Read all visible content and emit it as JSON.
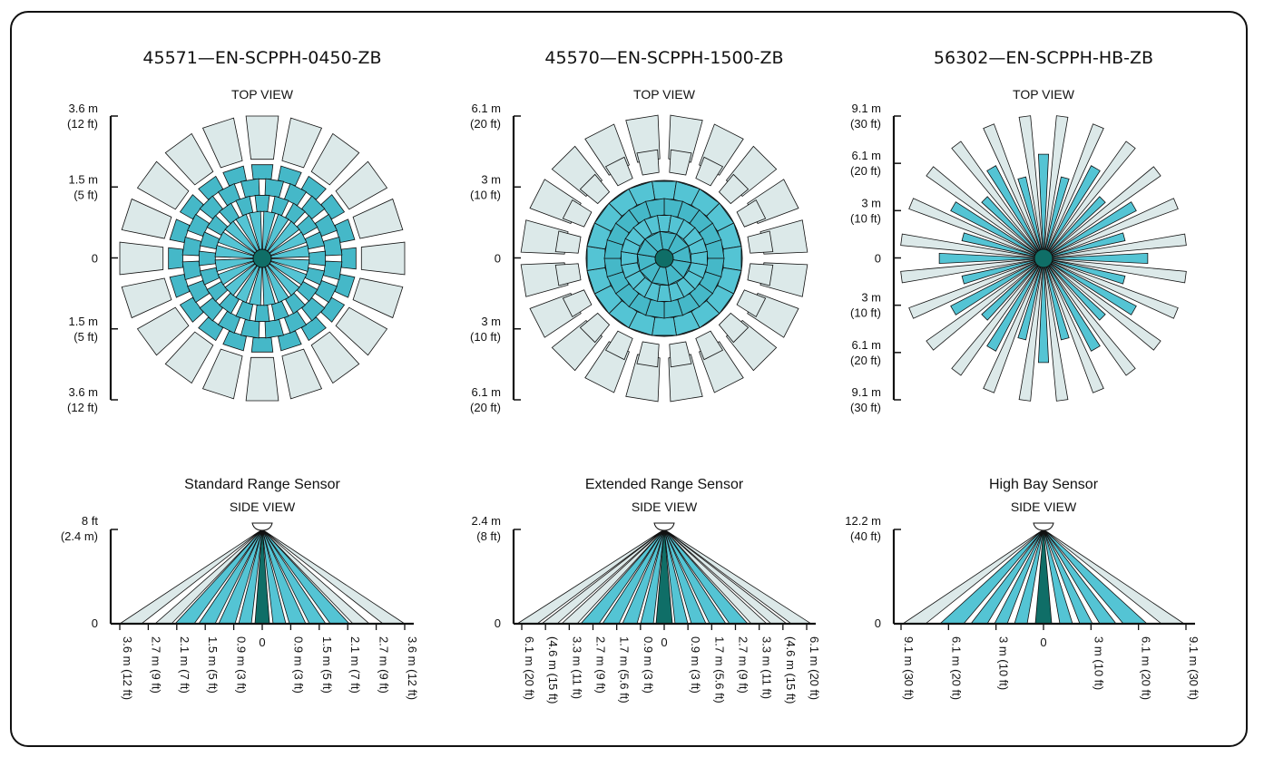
{
  "colors": {
    "outer": "#dce9e9",
    "mid": "#45b8c8",
    "inner": "#54c4d4",
    "core": "#0f6e67",
    "stroke": "#111111"
  },
  "sensors": [
    {
      "model": "45571—EN-SCPPH-0450-ZB",
      "top_label": "TOP VIEW",
      "top_pattern": "standard",
      "top_axis": [
        [
          "3.6 m",
          "(12 ft)"
        ],
        [
          "1.5 m",
          "(5 ft)"
        ],
        [
          "0",
          ""
        ],
        [
          "1.5 m",
          "(5 ft)"
        ],
        [
          "3.6 m",
          "(12 ft)"
        ]
      ],
      "side_name": "Standard Range Sensor",
      "side_label": "SIDE VIEW",
      "side_pattern": "standard",
      "side_height": [
        "8 ft",
        "(2.4 m)"
      ],
      "side_zero": "0",
      "side_ticks": [
        "3.6 m (12 ft)",
        "2.7 m (9 ft)",
        "2.1 m (7 ft)",
        "1.5 m (5 ft)",
        "0.9 m (3 ft)",
        "0",
        "0.9 m (3 ft)",
        "1.5 m (5 ft)",
        "2.1 m (7 ft)",
        "2.7 m (9 ft)",
        "3.6 m (12 ft)"
      ]
    },
    {
      "model": "45570—EN-SCPPH-1500-ZB",
      "top_label": "TOP VIEW",
      "top_pattern": "extended",
      "top_axis": [
        [
          "6.1 m",
          "(20 ft)"
        ],
        [
          "3 m",
          "(10 ft)"
        ],
        [
          "0",
          ""
        ],
        [
          "3 m",
          "(10 ft)"
        ],
        [
          "6.1 m",
          "(20 ft)"
        ]
      ],
      "side_name": "Extended Range Sensor",
      "side_label": "SIDE VIEW",
      "side_pattern": "extended",
      "side_height": [
        "2.4 m",
        "(8 ft)"
      ],
      "side_zero": "0",
      "side_ticks": [
        "6.1 m (20 ft)",
        "(4.6 m (15 ft)",
        "3.3 m (11 ft)",
        "2.7 m (9 ft)",
        "1.7 m (5.6 ft)",
        "0.9 m (3 ft)",
        "0",
        "0.9 m (3 ft)",
        "1.7 m (5.6 ft)",
        "2.7 m (9 ft)",
        "3.3 m (11 ft)",
        "(4.6 m (15 ft)",
        "6.1 m (20 ft)"
      ]
    },
    {
      "model": "56302—EN-SCPPH-HB-ZB",
      "top_label": "TOP VIEW",
      "top_pattern": "highbay",
      "top_axis": [
        [
          "9.1 m",
          "(30 ft)"
        ],
        [
          "6.1 m",
          "(20 ft)"
        ],
        [
          "3 m",
          "(10 ft)"
        ],
        [
          "0",
          ""
        ],
        [
          "3 m",
          "(10 ft)"
        ],
        [
          "6.1 m",
          "(20 ft)"
        ],
        [
          "9.1 m",
          "(30 ft)"
        ]
      ],
      "side_name": "High Bay Sensor",
      "side_label": "SIDE VIEW",
      "side_pattern": "highbay",
      "side_height": [
        "12.2 m",
        "(40 ft)"
      ],
      "side_zero": "0",
      "side_ticks": [
        "9.1 m (30 ft)",
        "6.1 m (20 ft)",
        "3 m (10 ft)",
        "0",
        "3 m (10 ft)",
        "6.1 m (20 ft)",
        "9.1 m (30 ft)"
      ]
    }
  ]
}
